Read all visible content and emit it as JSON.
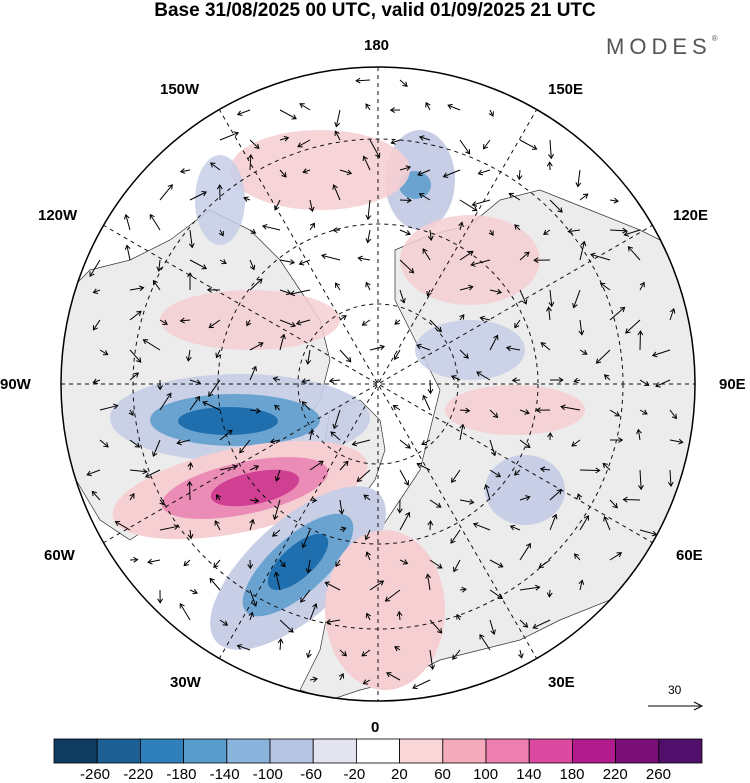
{
  "header": {
    "title": "Base 31/08/2025 00 UTC, valid 01/09/2025 21 UTC",
    "brand": "MODES"
  },
  "map": {
    "projection": "north-polar-stereographic",
    "longitude_labels": {
      "top": "180",
      "bottom": "0",
      "left": "90W",
      "right": "90E",
      "upper_left": "150W",
      "upper_left2": "120W",
      "upper_right": "150E",
      "upper_right2": "120E",
      "lower_left": "60W",
      "lower_left2": "30W",
      "lower_right": "60E",
      "lower_right2": "30E"
    },
    "reference_vector_label": "30",
    "colors": {
      "land": "#ececec",
      "ocean": "#ffffff",
      "neg_strong": "#1f6fae",
      "neg_mid": "#6aa3d0",
      "neg_weak": "#c7cee6",
      "pos_weak": "#f6cfd3",
      "pos_mid": "#ea8cb6",
      "pos_strong": "#cf3f92"
    }
  },
  "colorbar": {
    "ticks": [
      "-260",
      "-220",
      "-180",
      "-140",
      "-100",
      "-60",
      "-20",
      "20",
      "60",
      "100",
      "140",
      "180",
      "220",
      "260"
    ],
    "colors": [
      "#0f3d62",
      "#1d5f93",
      "#2f7fbb",
      "#5b9cce",
      "#8bb4dc",
      "#b7c3e3",
      "#e4e4f1",
      "#ffffff",
      "#f9d7d9",
      "#f4aabb",
      "#ec7fb0",
      "#dc49a0",
      "#b11c8c",
      "#7a0f78",
      "#4f0f6b"
    ]
  }
}
